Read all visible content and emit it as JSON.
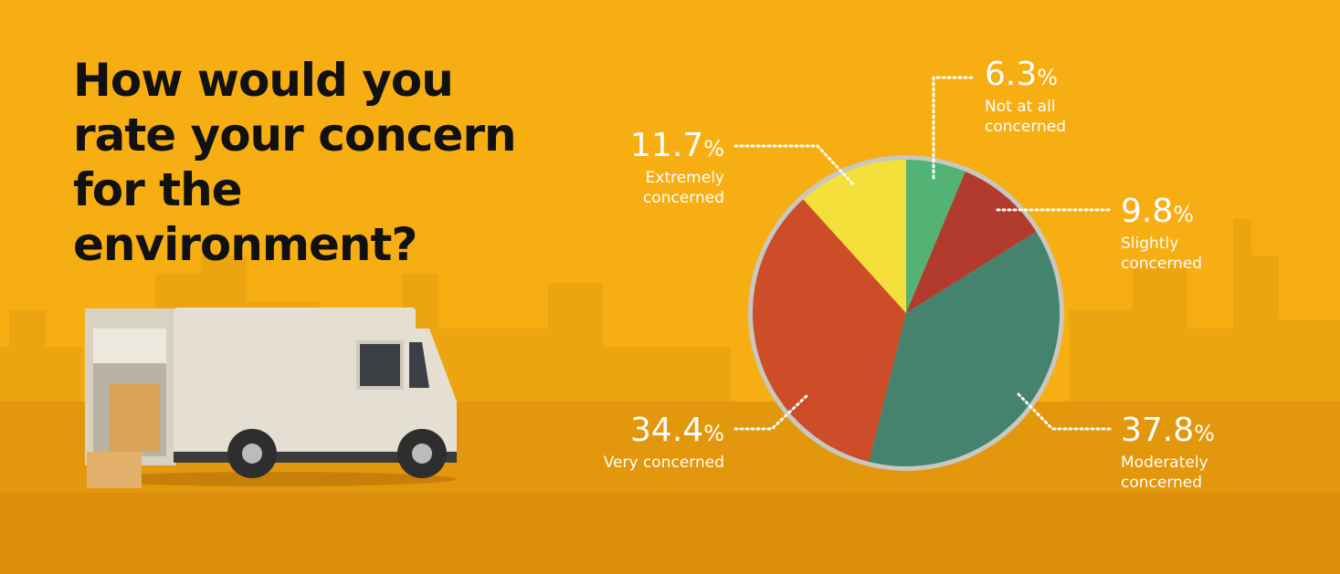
{
  "chart_data": {
    "type": "pie",
    "title": "How would you rate your concern for the environment?",
    "categories": [
      "Not at all concerned",
      "Slightly concerned",
      "Moderately concerned",
      "Very concerned",
      "Extremely concerned"
    ],
    "values": [
      6.3,
      9.8,
      37.8,
      34.4,
      11.7
    ],
    "value_labels": [
      "6.3%",
      "9.8%",
      "37.8%",
      "34.4%",
      "11.7%"
    ],
    "colors": [
      "#52b374",
      "#b33b2e",
      "#45836f",
      "#cc4d27",
      "#f5e03b"
    ]
  }
}
